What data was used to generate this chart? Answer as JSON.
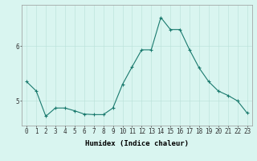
{
  "x": [
    0,
    1,
    2,
    3,
    4,
    5,
    6,
    7,
    8,
    9,
    10,
    11,
    12,
    13,
    14,
    15,
    16,
    17,
    18,
    19,
    20,
    21,
    22,
    23
  ],
  "y": [
    5.35,
    5.18,
    4.72,
    4.87,
    4.87,
    4.82,
    4.76,
    4.75,
    4.75,
    4.87,
    5.3,
    5.62,
    5.93,
    5.93,
    6.52,
    6.3,
    6.3,
    5.93,
    5.6,
    5.35,
    5.18,
    5.1,
    5.0,
    4.78
  ],
  "line_color": "#1a7a6e",
  "marker": "+",
  "marker_color": "#1a7a6e",
  "bg_color": "#d9f5f0",
  "grid_color": "#b8e0d8",
  "xlabel": "Humidex (Indice chaleur)",
  "xlim": [
    -0.5,
    23.5
  ],
  "ylim": [
    4.55,
    6.75
  ],
  "yticks": [
    5,
    6
  ],
  "xticks": [
    0,
    1,
    2,
    3,
    4,
    5,
    6,
    7,
    8,
    9,
    10,
    11,
    12,
    13,
    14,
    15,
    16,
    17,
    18,
    19,
    20,
    21,
    22,
    23
  ],
  "xlabel_fontsize": 6.5,
  "tick_fontsize": 5.5,
  "linewidth": 0.8,
  "markersize": 2.5
}
